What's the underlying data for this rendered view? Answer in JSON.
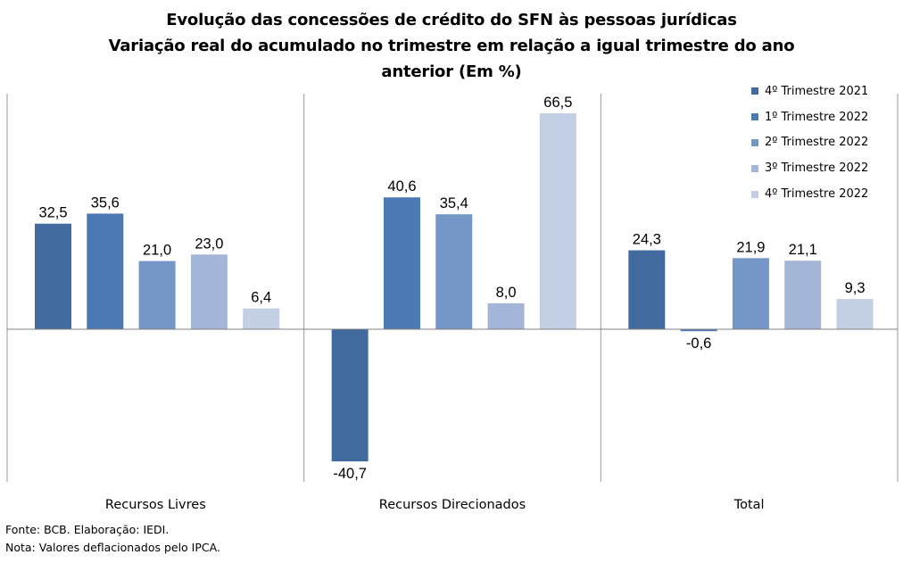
{
  "title_lines": [
    "Evolução das concessões de crédito do SFN às pessoas jurídicas",
    "Variação real do acumulado no trimestre em relação a igual trimestre do ano",
    "anterior (Em %)"
  ],
  "footnotes": {
    "source": "Fonte: BCB. Elaboração: IEDI.",
    "note": "Nota: Valores deflacionados pelo IPCA."
  },
  "chart_data": {
    "type": "bar",
    "title": "Evolução das concessões de crédito do SFN às pessoas jurídicas Variação real do acumulado no trimestre em relação a igual trimestre do ano anterior (Em %)",
    "categories": [
      "Recursos Livres",
      "Recursos Direcionados",
      "Total"
    ],
    "series": [
      {
        "name": "4º Trimestre 2021",
        "color": "#416a9e",
        "values": [
          32.5,
          -40.7,
          24.3
        ],
        "labels": [
          "32,5",
          "-40,7",
          "24,3"
        ]
      },
      {
        "name": "1º Trimestre 2022",
        "color": "#4a79b4",
        "values": [
          35.6,
          40.6,
          -0.6
        ],
        "labels": [
          "35,6",
          "40,6",
          "-0,6"
        ]
      },
      {
        "name": "2º Trimestre 2022",
        "color": "#7597c7",
        "values": [
          21.0,
          35.4,
          21.9
        ],
        "labels": [
          "21,0",
          "35,4",
          "21,9"
        ]
      },
      {
        "name": "3º Trimestre 2022",
        "color": "#a3b6d7",
        "values": [
          23.0,
          8.0,
          21.1
        ],
        "labels": [
          "23,0",
          "8,0",
          "21,1"
        ]
      },
      {
        "name": "4º Trimestre 2022",
        "color": "#c3cfe4",
        "values": [
          6.4,
          66.5,
          9.3
        ],
        "labels": [
          "6,4",
          "66,5",
          "9,3"
        ]
      }
    ],
    "xlabel": "",
    "ylabel": "",
    "ylim": [
      -45,
      72
    ],
    "grid": false,
    "legend_position": "right"
  }
}
